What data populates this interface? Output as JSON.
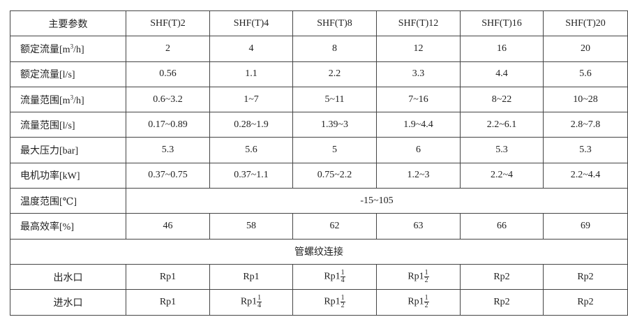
{
  "header": {
    "label": "主要参数",
    "models": [
      "SHF(T)2",
      "SHF(T)4",
      "SHF(T)8",
      "SHF(T)12",
      "SHF(T)16",
      "SHF(T)20"
    ]
  },
  "rows": [
    {
      "label_pre": "额定流量[m",
      "label_sup": "3",
      "label_post": "/h]",
      "values": [
        "2",
        "4",
        "8",
        "12",
        "16",
        "20"
      ]
    },
    {
      "label": "额定流量[l/s]",
      "values": [
        "0.56",
        "1.1",
        "2.2",
        "3.3",
        "4.4",
        "5.6"
      ]
    },
    {
      "label_pre": "流量范围[m",
      "label_sup": "3",
      "label_post": "/h]",
      "values": [
        "0.6~3.2",
        "1~7",
        "5~11",
        "7~16",
        "8~22",
        "10~28"
      ]
    },
    {
      "label": "流量范围[l/s]",
      "values": [
        "0.17~0.89",
        "0.28~1.9",
        "1.39~3",
        "1.9~4.4",
        "2.2~6.1",
        "2.8~7.8"
      ]
    },
    {
      "label": "最大压力[bar]",
      "values": [
        "5.3",
        "5.6",
        "5",
        "6",
        "5.3",
        "5.3"
      ]
    },
    {
      "label": "电机功率[kW]",
      "values": [
        "0.37~0.75",
        "0.37~1.1",
        "0.75~2.2",
        "1.2~3",
        "2.2~4",
        "2.2~4.4"
      ]
    },
    {
      "label": "温度范围[℃]",
      "value": "-15~105"
    },
    {
      "label": "最高效率[%]",
      "values": [
        "46",
        "58",
        "62",
        "63",
        "66",
        "69"
      ]
    }
  ],
  "section": "管螺纹连接",
  "connections": [
    {
      "label": "出水口",
      "values": [
        {
          "base": "Rp1"
        },
        {
          "base": "Rp1"
        },
        {
          "base": "Rp1",
          "num": "1",
          "den": "4"
        },
        {
          "base": "Rp1",
          "num": "1",
          "den": "2"
        },
        {
          "base": "Rp2"
        },
        {
          "base": "Rp2"
        }
      ]
    },
    {
      "label": "进水口",
      "values": [
        {
          "base": "Rp1"
        },
        {
          "base": "Rp1",
          "num": "1",
          "den": "4"
        },
        {
          "base": "Rp1",
          "num": "1",
          "den": "2"
        },
        {
          "base": "Rp1",
          "num": "1",
          "den": "2"
        },
        {
          "base": "Rp2"
        },
        {
          "base": "Rp2"
        }
      ]
    }
  ]
}
